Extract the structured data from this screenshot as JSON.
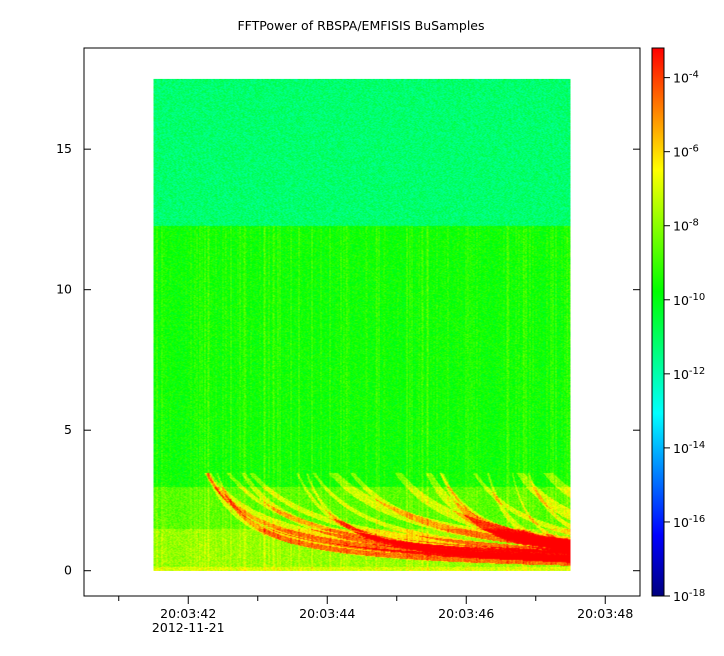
{
  "chart_data": {
    "type": "heatmap",
    "title": "FFTPower of RBSPA/EMFISIS  BuSamples",
    "xlabel": "",
    "ylabel": "",
    "x_tick_labels": [
      "20:03:42",
      "20:03:44",
      "20:03:46",
      "20:03:48"
    ],
    "x_tick_sublabel": "2012-11-21",
    "x_ticks_seconds": [
      42,
      44,
      46,
      48
    ],
    "x_minor_ticks_seconds": [
      41,
      43,
      45,
      47
    ],
    "xlim_seconds": [
      40.5,
      48.5
    ],
    "data_x_range_seconds": [
      41.5,
      47.5
    ],
    "y_tick_labels": [
      "0",
      "5",
      "10",
      "15"
    ],
    "y_ticks": [
      0,
      5,
      10,
      15
    ],
    "ylim": [
      -0.9,
      18.6
    ],
    "data_y_range": [
      0,
      17.5
    ],
    "colorbar": {
      "scale": "log",
      "tick_labels": [
        {
          "base": "10",
          "exp": "-4"
        },
        {
          "base": "10",
          "exp": "-6"
        },
        {
          "base": "10",
          "exp": "-8"
        },
        {
          "base": "10",
          "exp": "-10"
        },
        {
          "base": "10",
          "exp": "-12"
        },
        {
          "base": "10",
          "exp": "-14"
        },
        {
          "base": "10",
          "exp": "-16"
        },
        {
          "base": "10",
          "exp": "-18"
        }
      ],
      "tick_exponents": [
        -4,
        -6,
        -8,
        -10,
        -12,
        -14,
        -16,
        -18
      ],
      "range_exponents": [
        -18,
        -3.2
      ],
      "colormap": [
        "#00007f",
        "#0000ff",
        "#007fff",
        "#00ffff",
        "#00ff7f",
        "#00ff00",
        "#7fff00",
        "#ffff00",
        "#ff7f00",
        "#ff0000"
      ]
    },
    "bands": [
      {
        "from": 0,
        "to": 0.15,
        "level_exponent": -7.2
      },
      {
        "from": 0.15,
        "to": 1.5,
        "level_exponent": -8.0
      },
      {
        "from": 1.5,
        "to": 3.0,
        "level_exponent": -8.8
      },
      {
        "from": 3.0,
        "to": 12.3,
        "level_exponent": -9.8
      },
      {
        "from": 12.3,
        "to": 17.5,
        "level_exponent": -11.2
      }
    ],
    "grid": false
  },
  "colors": {
    "background": "#ffffff",
    "axis": "#000000"
  }
}
